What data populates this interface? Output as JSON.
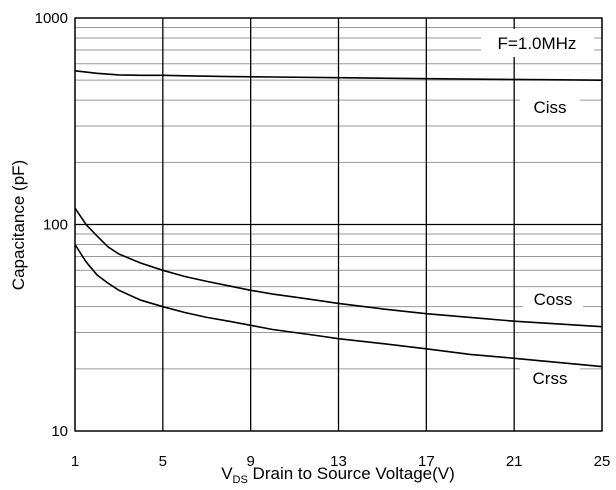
{
  "chart_data": {
    "type": "line",
    "title": "",
    "xlabel": {
      "prefix": "V",
      "subscript": "DS",
      "text": " Drain to Source Voltage(V)"
    },
    "ylabel": "Capacitance (pF)",
    "xlim": [
      1,
      25
    ],
    "ylim": [
      10,
      1000
    ],
    "yscale": "log",
    "grid": true,
    "x_ticks": [
      1,
      5,
      9,
      13,
      17,
      21,
      25
    ],
    "y_ticks": [
      10,
      100,
      1000
    ],
    "annotations": [
      "F=1.0MHz"
    ],
    "series": [
      {
        "name": "Ciss",
        "x": [
          1,
          2,
          3,
          4,
          5,
          6,
          8,
          10,
          13,
          16,
          20,
          23,
          25
        ],
        "values": [
          555,
          540,
          530,
          528,
          528,
          525,
          520,
          518,
          514,
          510,
          505,
          502,
          500
        ]
      },
      {
        "name": "Coss",
        "x": [
          1,
          1.5,
          2,
          2.5,
          3,
          4,
          5,
          6,
          7,
          8,
          9,
          10,
          11,
          12,
          13,
          15,
          17,
          19,
          21,
          23,
          25
        ],
        "values": [
          120,
          100,
          88,
          78,
          72,
          65,
          60,
          56,
          53,
          50.5,
          48,
          46,
          44.5,
          43,
          41.5,
          39,
          37,
          35.5,
          34,
          33,
          32
        ]
      },
      {
        "name": "Crss",
        "x": [
          1,
          1.5,
          2,
          2.5,
          3,
          4,
          5,
          6,
          7,
          8,
          9,
          10,
          11,
          12,
          13,
          15,
          17,
          19,
          21,
          23,
          25
        ],
        "values": [
          80,
          66,
          57,
          52,
          48,
          43,
          40,
          37.5,
          35.5,
          34,
          32.5,
          31,
          30,
          29,
          28,
          26.5,
          25,
          23.5,
          22.5,
          21.5,
          20.5
        ]
      }
    ]
  }
}
